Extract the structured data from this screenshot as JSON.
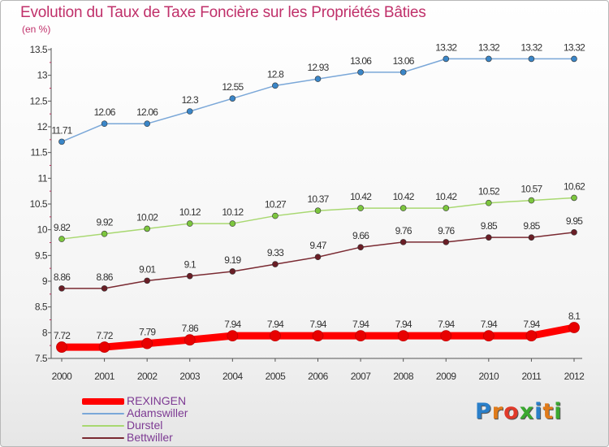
{
  "title": "Evolution du Taux de Taxe Foncière sur les Propriétés Bâties",
  "unit": "(en %)",
  "logo": {
    "text": "Proxiti",
    "colors": [
      "#2a7fc9",
      "#e07b1a",
      "#e03a2a",
      "#3aa830",
      "#2a7fc9",
      "#e07b1a",
      "#3aa830"
    ]
  },
  "chart_data": {
    "type": "line",
    "title": "Evolution du Taux de Taxe Foncière sur les Propriétés Bâties",
    "ylabel": "(en %)",
    "xlabel": "",
    "x": [
      "2000",
      "2001",
      "2002",
      "2003",
      "2004",
      "2005",
      "2006",
      "2007",
      "2008",
      "2009",
      "2010",
      "2011",
      "2012"
    ],
    "ylim": [
      7.5,
      13.5
    ],
    "yticks": [
      7.5,
      8,
      8.5,
      9,
      9.5,
      10,
      10.5,
      11,
      11.5,
      12,
      12.5,
      13,
      13.5
    ],
    "ytick_labels": [
      "7.5",
      "8",
      "8.5",
      "9",
      "9.5",
      "10",
      "10.5",
      "11",
      "11.5",
      "12",
      "12.5",
      "13",
      "13.5"
    ],
    "grid": false,
    "legend_position": "bottom-left",
    "series": [
      {
        "name": "REXINGEN",
        "color": "#ff0000",
        "dot": "#e80000",
        "thick": true,
        "values": [
          7.72,
          7.72,
          7.79,
          7.86,
          7.94,
          7.94,
          7.94,
          7.94,
          7.94,
          7.94,
          7.94,
          7.94,
          8.1
        ],
        "labels": [
          "7.72",
          "7.72",
          "7.79",
          "7.86",
          "7.94",
          "7.94",
          "7.94",
          "7.94",
          "7.94",
          "7.94",
          "7.94",
          "7.94",
          "8.1"
        ]
      },
      {
        "name": "Adamswiller",
        "color": "#7aa7d8",
        "dot": "#3a86c8",
        "thick": false,
        "values": [
          11.71,
          12.06,
          12.06,
          12.3,
          12.55,
          12.8,
          12.93,
          13.06,
          13.06,
          13.32,
          13.32,
          13.32,
          13.32
        ],
        "labels": [
          "11.71",
          "12.06",
          "12.06",
          "12.3",
          "12.55",
          "12.8",
          "12.93",
          "13.06",
          "13.06",
          "13.32",
          "13.32",
          "13.32",
          "13.32"
        ]
      },
      {
        "name": "Durstel",
        "color": "#a8d870",
        "dot": "#7cc63e",
        "thick": false,
        "values": [
          9.82,
          9.92,
          10.02,
          10.12,
          10.12,
          10.27,
          10.37,
          10.42,
          10.42,
          10.42,
          10.52,
          10.57,
          10.62
        ],
        "labels": [
          "9.82",
          "9.92",
          "10.02",
          "10.12",
          "10.12",
          "10.27",
          "10.37",
          "10.42",
          "10.42",
          "10.42",
          "10.52",
          "10.57",
          "10.62"
        ]
      },
      {
        "name": "Bettwiller",
        "color": "#7a2a32",
        "dot": "#6a1e26",
        "thick": false,
        "values": [
          8.86,
          8.86,
          9.01,
          9.1,
          9.19,
          9.33,
          9.47,
          9.66,
          9.76,
          9.76,
          9.85,
          9.85,
          9.95
        ],
        "labels": [
          "8.86",
          "8.86",
          "9.01",
          "9.1",
          "9.19",
          "9.33",
          "9.47",
          "9.66",
          "9.76",
          "9.76",
          "9.85",
          "9.85",
          "9.95"
        ]
      }
    ]
  }
}
